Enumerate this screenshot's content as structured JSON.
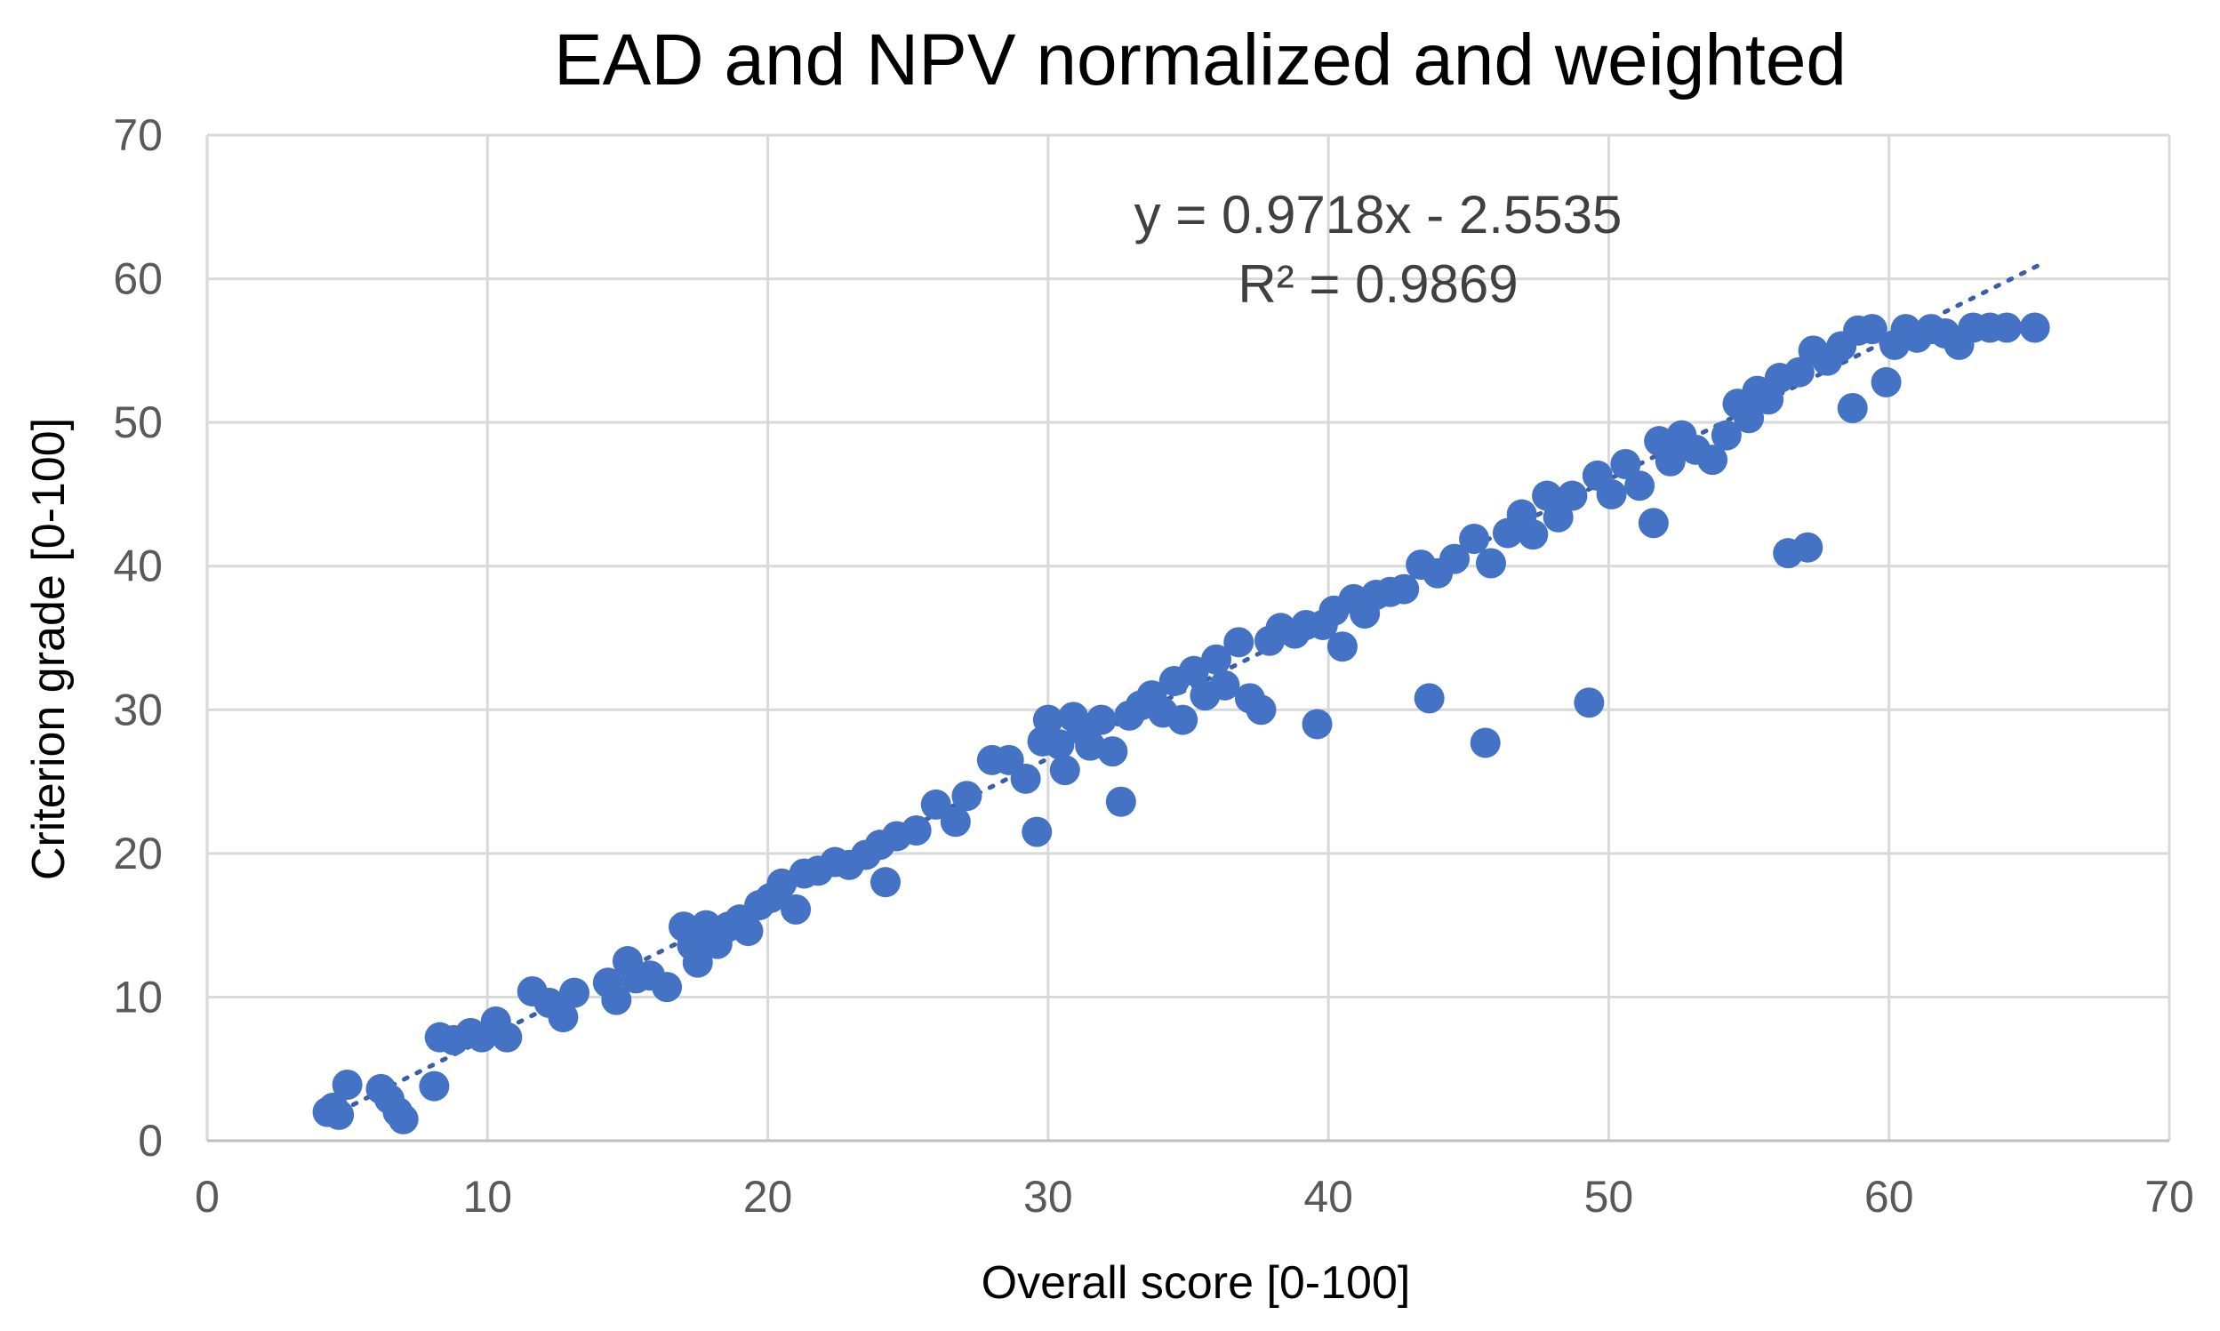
{
  "chart_data": {
    "type": "scatter",
    "title": "EAD and NPV normalized and weighted",
    "xlabel": "Overall score [0-100]",
    "ylabel": "Criterion grade [0-100]",
    "xlim": [
      0,
      70
    ],
    "ylim": [
      0,
      70
    ],
    "xticks": [
      "0",
      "10",
      "20",
      "30",
      "40",
      "50",
      "60",
      "70"
    ],
    "yticks": [
      "0",
      "10",
      "20",
      "30",
      "40",
      "50",
      "60",
      "70"
    ],
    "grid": true,
    "marker_color": "#4472C4",
    "trendline": {
      "type": "linear",
      "slope": 0.9718,
      "intercept": -2.5535,
      "x_range": [
        4.3,
        65.3
      ],
      "style": "dotted",
      "equation_label": "y = 0.9718x - 2.5535",
      "r2_label": "R² = 0.9869"
    },
    "series": [
      {
        "name": "Criterion grade",
        "points": [
          [
            4.3,
            2.0
          ],
          [
            4.5,
            2.3
          ],
          [
            4.7,
            1.8
          ],
          [
            5.0,
            3.9
          ],
          [
            6.2,
            3.6
          ],
          [
            6.5,
            2.9
          ],
          [
            6.8,
            2.0
          ],
          [
            7.0,
            1.5
          ],
          [
            8.1,
            3.8
          ],
          [
            8.3,
            7.2
          ],
          [
            8.8,
            7.0
          ],
          [
            9.4,
            7.5
          ],
          [
            9.8,
            7.2
          ],
          [
            10.3,
            8.3
          ],
          [
            10.7,
            7.2
          ],
          [
            11.6,
            10.4
          ],
          [
            12.2,
            9.6
          ],
          [
            12.7,
            8.6
          ],
          [
            13.1,
            10.3
          ],
          [
            14.3,
            11.0
          ],
          [
            14.6,
            9.8
          ],
          [
            15.0,
            12.5
          ],
          [
            15.3,
            11.3
          ],
          [
            15.8,
            11.5
          ],
          [
            16.4,
            10.7
          ],
          [
            17.0,
            14.9
          ],
          [
            17.3,
            13.6
          ],
          [
            17.5,
            12.4
          ],
          [
            17.8,
            15.0
          ],
          [
            18.2,
            13.7
          ],
          [
            18.6,
            14.9
          ],
          [
            19.0,
            15.4
          ],
          [
            19.3,
            14.6
          ],
          [
            19.7,
            16.4
          ],
          [
            20.1,
            16.9
          ],
          [
            20.5,
            17.9
          ],
          [
            21.0,
            16.1
          ],
          [
            21.3,
            18.6
          ],
          [
            21.8,
            18.8
          ],
          [
            22.4,
            19.4
          ],
          [
            22.9,
            19.2
          ],
          [
            23.5,
            19.9
          ],
          [
            24.0,
            20.6
          ],
          [
            24.2,
            18.0
          ],
          [
            24.6,
            21.2
          ],
          [
            25.3,
            21.6
          ],
          [
            26.0,
            23.4
          ],
          [
            26.7,
            22.2
          ],
          [
            27.1,
            24.0
          ],
          [
            28.0,
            26.5
          ],
          [
            28.6,
            26.5
          ],
          [
            29.2,
            25.2
          ],
          [
            29.6,
            21.5
          ],
          [
            29.8,
            27.8
          ],
          [
            30.0,
            29.3
          ],
          [
            30.4,
            27.6
          ],
          [
            30.6,
            25.8
          ],
          [
            30.9,
            29.5
          ],
          [
            31.2,
            28.6
          ],
          [
            31.5,
            27.5
          ],
          [
            31.9,
            29.3
          ],
          [
            32.3,
            27.1
          ],
          [
            32.6,
            23.6
          ],
          [
            32.9,
            29.6
          ],
          [
            33.3,
            30.3
          ],
          [
            33.7,
            31.0
          ],
          [
            34.1,
            29.8
          ],
          [
            34.5,
            32.0
          ],
          [
            34.8,
            29.3
          ],
          [
            35.2,
            32.7
          ],
          [
            35.6,
            31.0
          ],
          [
            36.0,
            33.5
          ],
          [
            36.3,
            31.7
          ],
          [
            36.8,
            34.7
          ],
          [
            37.2,
            30.8
          ],
          [
            37.6,
            30.0
          ],
          [
            37.9,
            34.8
          ],
          [
            38.3,
            35.7
          ],
          [
            38.8,
            35.3
          ],
          [
            39.2,
            35.9
          ],
          [
            39.6,
            29.0
          ],
          [
            39.8,
            35.9
          ],
          [
            40.2,
            36.9
          ],
          [
            40.5,
            34.4
          ],
          [
            40.9,
            37.7
          ],
          [
            41.3,
            36.7
          ],
          [
            41.7,
            38.0
          ],
          [
            42.2,
            38.2
          ],
          [
            42.7,
            38.4
          ],
          [
            43.3,
            40.1
          ],
          [
            43.6,
            30.8
          ],
          [
            43.9,
            39.5
          ],
          [
            44.5,
            40.5
          ],
          [
            45.2,
            41.9
          ],
          [
            45.6,
            27.7
          ],
          [
            45.8,
            40.2
          ],
          [
            46.4,
            42.3
          ],
          [
            46.9,
            43.6
          ],
          [
            47.3,
            42.2
          ],
          [
            47.8,
            44.9
          ],
          [
            48.2,
            43.4
          ],
          [
            48.7,
            44.9
          ],
          [
            49.3,
            30.5
          ],
          [
            49.6,
            46.3
          ],
          [
            50.1,
            45.0
          ],
          [
            50.6,
            47.1
          ],
          [
            51.1,
            45.6
          ],
          [
            51.6,
            43.0
          ],
          [
            51.8,
            48.7
          ],
          [
            52.2,
            47.3
          ],
          [
            52.6,
            49.1
          ],
          [
            53.1,
            48.1
          ],
          [
            53.7,
            47.4
          ],
          [
            54.2,
            49.1
          ],
          [
            54.6,
            51.3
          ],
          [
            55.0,
            50.3
          ],
          [
            55.3,
            52.2
          ],
          [
            55.7,
            51.6
          ],
          [
            56.1,
            53.1
          ],
          [
            56.4,
            40.9
          ],
          [
            56.8,
            53.5
          ],
          [
            57.1,
            41.3
          ],
          [
            57.3,
            55.0
          ],
          [
            57.8,
            54.3
          ],
          [
            58.3,
            55.3
          ],
          [
            58.7,
            51.0
          ],
          [
            58.9,
            56.4
          ],
          [
            59.4,
            56.5
          ],
          [
            59.9,
            52.8
          ],
          [
            60.2,
            55.4
          ],
          [
            60.6,
            56.5
          ],
          [
            61.0,
            55.9
          ],
          [
            61.5,
            56.5
          ],
          [
            62.0,
            56.2
          ],
          [
            62.5,
            55.4
          ],
          [
            63.0,
            56.6
          ],
          [
            63.6,
            56.6
          ],
          [
            64.2,
            56.6
          ],
          [
            65.2,
            56.6
          ]
        ]
      }
    ]
  }
}
